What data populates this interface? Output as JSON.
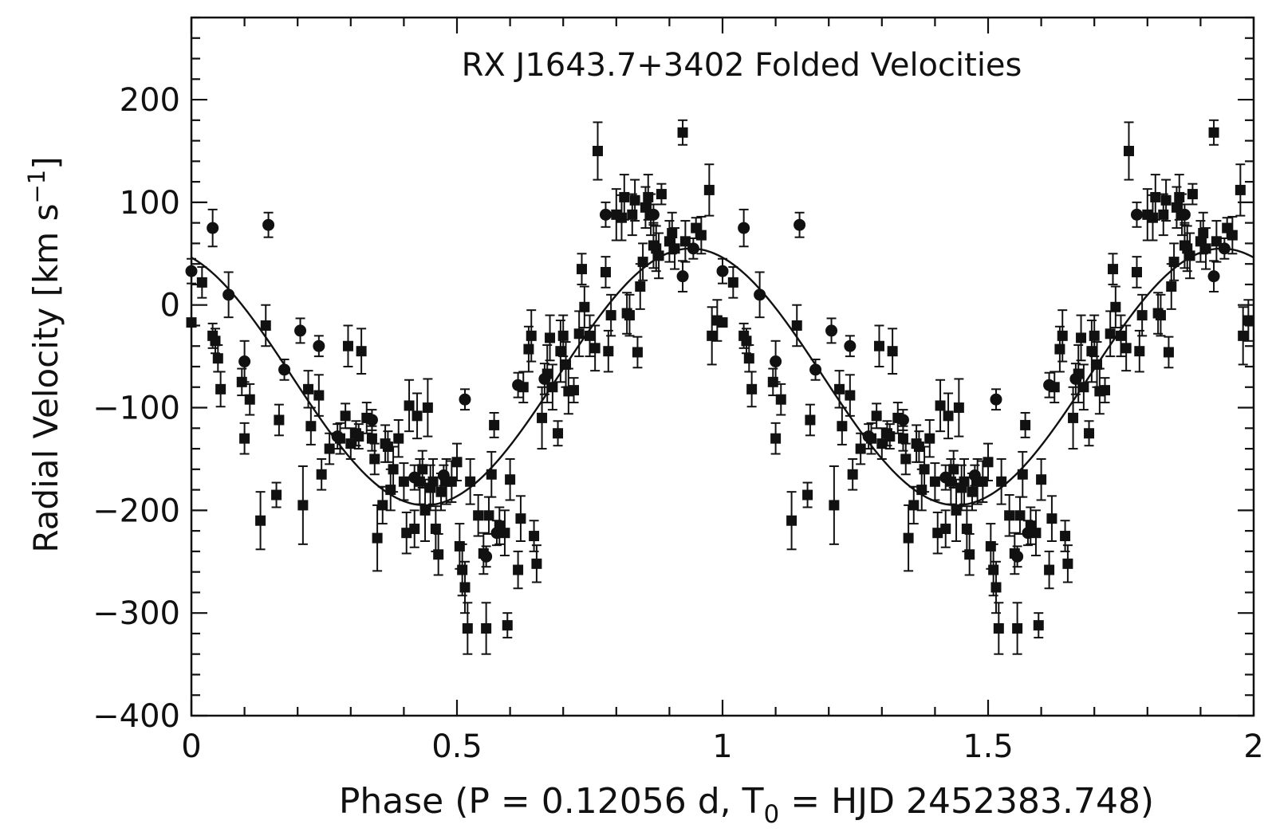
{
  "chart_data": {
    "type": "scatter",
    "title": "RX J1643.7+3402 Folded Velocities",
    "xlabel": {
      "main": "Phase (P = 0.12056 d, T",
      "subscript": "0",
      "tail": " = HJD 2452383.748)"
    },
    "ylabel": {
      "main": "Radial Velocity [km s",
      "superscript": "−1",
      "tail": "]"
    },
    "xlim": [
      0,
      2
    ],
    "ylim": [
      -400,
      280
    ],
    "x_ticks": [
      0,
      0.5,
      1,
      1.5,
      2
    ],
    "x_tick_labels": [
      "0",
      "0.5",
      "1",
      "1.5",
      "2"
    ],
    "y_ticks": [
      -400,
      -300,
      -200,
      -100,
      0,
      100,
      200
    ],
    "y_tick_labels": [
      "−400",
      "−300",
      "−200",
      "−100",
      "0",
      "100",
      "200"
    ],
    "grid": false,
    "fit_curve": {
      "gamma": -70,
      "amplitude": 125,
      "phase_of_max": 0.94,
      "color": "#111111"
    },
    "series": [
      {
        "marker": "square",
        "color": "#111111",
        "points": [
          [
            0.0,
            -17,
            0
          ],
          [
            0.02,
            22,
            15
          ],
          [
            0.04,
            -30,
            12
          ],
          [
            0.045,
            -35,
            12
          ],
          [
            0.05,
            -52,
            13
          ],
          [
            0.055,
            -82,
            17
          ],
          [
            0.095,
            -75,
            13
          ],
          [
            0.1,
            -130,
            15
          ],
          [
            0.11,
            -92,
            15
          ],
          [
            0.13,
            -210,
            28
          ],
          [
            0.14,
            -20,
            20
          ],
          [
            0.16,
            -185,
            12
          ],
          [
            0.165,
            -112,
            15
          ],
          [
            0.21,
            -195,
            38
          ],
          [
            0.22,
            -82,
            18
          ],
          [
            0.225,
            -118,
            18
          ],
          [
            0.24,
            -88,
            20
          ],
          [
            0.245,
            -165,
            15
          ],
          [
            0.26,
            -140,
            15
          ],
          [
            0.28,
            -130,
            15
          ],
          [
            0.29,
            -108,
            12
          ],
          [
            0.295,
            -40,
            20
          ],
          [
            0.3,
            -135,
            15
          ],
          [
            0.31,
            -125,
            12
          ],
          [
            0.315,
            -128,
            12
          ],
          [
            0.32,
            -45,
            22
          ],
          [
            0.33,
            -110,
            15
          ],
          [
            0.34,
            -130,
            12
          ],
          [
            0.345,
            -150,
            15
          ],
          [
            0.35,
            -227,
            32
          ],
          [
            0.36,
            -195,
            18
          ],
          [
            0.365,
            -135,
            18
          ],
          [
            0.37,
            -138,
            15
          ],
          [
            0.375,
            -180,
            20
          ],
          [
            0.38,
            -160,
            22
          ],
          [
            0.39,
            -130,
            18
          ],
          [
            0.4,
            -172,
            18
          ],
          [
            0.405,
            -222,
            20
          ],
          [
            0.41,
            -98,
            25
          ],
          [
            0.42,
            -218,
            18
          ],
          [
            0.425,
            -108,
            22
          ],
          [
            0.43,
            -172,
            22
          ],
          [
            0.435,
            -160,
            18
          ],
          [
            0.44,
            -200,
            30
          ],
          [
            0.445,
            -100,
            28
          ],
          [
            0.45,
            -178,
            22
          ],
          [
            0.455,
            -172,
            22
          ],
          [
            0.46,
            -218,
            22
          ],
          [
            0.465,
            -243,
            20
          ],
          [
            0.47,
            -182,
            18
          ],
          [
            0.48,
            -172,
            22
          ],
          [
            0.49,
            -172,
            20
          ],
          [
            0.5,
            -153,
            18
          ],
          [
            0.505,
            -235,
            22
          ],
          [
            0.51,
            -258,
            25
          ],
          [
            0.515,
            -275,
            25
          ],
          [
            0.52,
            -315,
            25
          ],
          [
            0.525,
            -172,
            22
          ],
          [
            0.54,
            -205,
            20
          ],
          [
            0.55,
            -242,
            20
          ],
          [
            0.555,
            -315,
            25
          ],
          [
            0.56,
            -205,
            18
          ],
          [
            0.565,
            -165,
            22
          ],
          [
            0.57,
            -117,
            12
          ],
          [
            0.58,
            -215,
            18
          ],
          [
            0.59,
            -222,
            22
          ],
          [
            0.595,
            -312,
            12
          ],
          [
            0.6,
            -170,
            20
          ],
          [
            0.615,
            -258,
            18
          ],
          [
            0.62,
            -208,
            22
          ],
          [
            0.625,
            -80,
            15
          ],
          [
            0.635,
            -43,
            22
          ],
          [
            0.64,
            -30,
            25
          ],
          [
            0.645,
            -225,
            15
          ],
          [
            0.65,
            -252,
            18
          ],
          [
            0.66,
            -110,
            30
          ],
          [
            0.67,
            -67,
            28
          ],
          [
            0.675,
            -32,
            22
          ],
          [
            0.68,
            -80,
            22
          ],
          [
            0.69,
            -125,
            12
          ],
          [
            0.695,
            -45,
            30
          ],
          [
            0.7,
            -30,
            20
          ],
          [
            0.705,
            -58,
            22
          ],
          [
            0.71,
            -84,
            22
          ],
          [
            0.72,
            -83,
            12
          ],
          [
            0.73,
            -28,
            22
          ],
          [
            0.735,
            35,
            15
          ],
          [
            0.74,
            -2,
            20
          ],
          [
            0.75,
            -30,
            20
          ],
          [
            0.76,
            -42,
            22
          ],
          [
            0.765,
            150,
            28
          ],
          [
            0.78,
            32,
            15
          ],
          [
            0.785,
            -45,
            20
          ],
          [
            0.79,
            -10,
            20
          ],
          [
            0.8,
            88,
            25
          ],
          [
            0.81,
            85,
            22
          ],
          [
            0.815,
            105,
            22
          ],
          [
            0.82,
            -8,
            20
          ],
          [
            0.825,
            -10,
            20
          ],
          [
            0.83,
            88,
            20
          ],
          [
            0.835,
            102,
            20
          ],
          [
            0.84,
            -46,
            15
          ],
          [
            0.845,
            18,
            22
          ],
          [
            0.85,
            42,
            18
          ],
          [
            0.855,
            95,
            20
          ],
          [
            0.86,
            105,
            22
          ],
          [
            0.865,
            88,
            20
          ],
          [
            0.87,
            58,
            22
          ],
          [
            0.875,
            55,
            22
          ],
          [
            0.88,
            48,
            22
          ],
          [
            0.885,
            108,
            10
          ],
          [
            0.9,
            62,
            20
          ],
          [
            0.905,
            70,
            20
          ],
          [
            0.91,
            55,
            20
          ],
          [
            0.925,
            168,
            12
          ],
          [
            0.93,
            62,
            20
          ],
          [
            0.95,
            75,
            10
          ],
          [
            0.96,
            68,
            18
          ],
          [
            0.975,
            112,
            25
          ],
          [
            0.98,
            -30,
            28
          ],
          [
            0.99,
            -15,
            20
          ]
        ]
      },
      {
        "marker": "circle",
        "color": "#111111",
        "points": [
          [
            0.0,
            33,
            12
          ],
          [
            0.04,
            75,
            18
          ],
          [
            0.07,
            10,
            22
          ],
          [
            0.1,
            -55,
            20
          ],
          [
            0.145,
            78,
            12
          ],
          [
            0.175,
            -63,
            10
          ],
          [
            0.205,
            -25,
            12
          ],
          [
            0.24,
            -40,
            10
          ],
          [
            0.275,
            -128,
            12
          ],
          [
            0.34,
            -112,
            10
          ],
          [
            0.42,
            -168,
            12
          ],
          [
            0.475,
            -166,
            10
          ],
          [
            0.515,
            -92,
            10
          ],
          [
            0.555,
            -245,
            10
          ],
          [
            0.575,
            -222,
            12
          ],
          [
            0.615,
            -78,
            12
          ],
          [
            0.665,
            -72,
            15
          ],
          [
            0.78,
            88,
            12
          ],
          [
            0.87,
            88,
            10
          ],
          [
            0.925,
            28,
            15
          ],
          [
            0.945,
            55,
            10
          ]
        ]
      }
    ]
  }
}
